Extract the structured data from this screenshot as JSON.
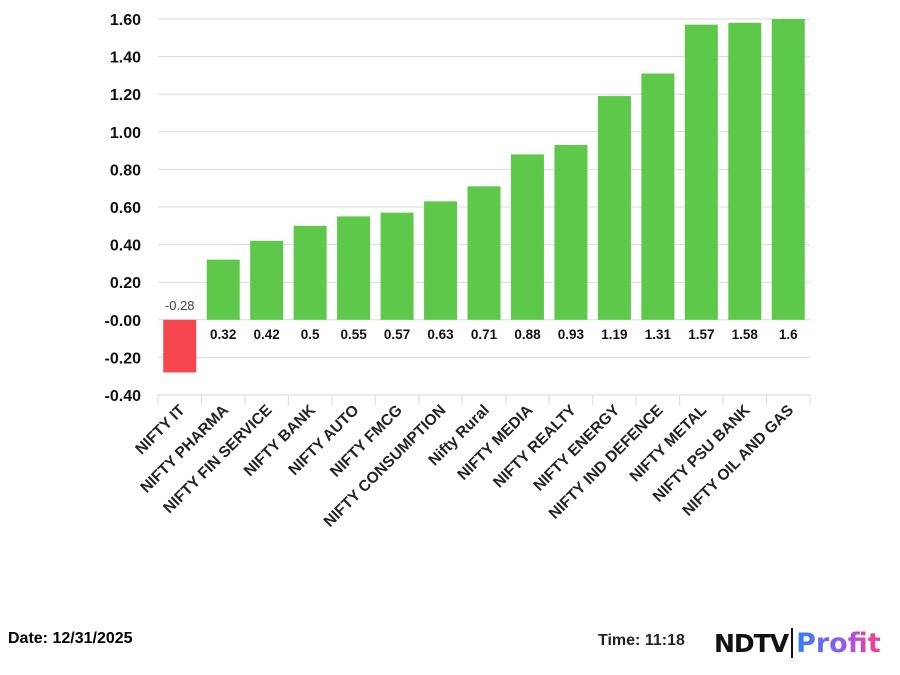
{
  "chart_data": {
    "type": "bar",
    "categories": [
      "NIFTY IT",
      "NIFTY PHARMA",
      "NIFTY FIN SERVICE",
      "NIFTY BANK",
      "NIFTY AUTO",
      "NIFTY FMCG",
      "NIFTY CONSUMPTION",
      "Nifty Rural",
      "NIFTY MEDIA",
      "NIFTY REALTY",
      "NIFTY ENERGY",
      "NIFTY IND DEFENCE",
      "NIFTY METAL",
      "NIFTY PSU BANK",
      "NIFTY OIL AND GAS"
    ],
    "values": [
      -0.28,
      0.32,
      0.42,
      0.5,
      0.55,
      0.57,
      0.63,
      0.71,
      0.88,
      0.93,
      1.19,
      1.31,
      1.57,
      1.58,
      1.6
    ],
    "data_labels": [
      "-0.28",
      "0.32",
      "0.42",
      "0.5",
      "0.55",
      "0.57",
      "0.63",
      "0.71",
      "0.88",
      "0.93",
      "1.19",
      "1.31",
      "1.57",
      "1.58",
      "1.6"
    ],
    "ylim": [
      -0.4,
      1.6
    ],
    "yticks": [
      "-0.40",
      "-0.20",
      "-0.00",
      "0.20",
      "0.40",
      "0.60",
      "0.80",
      "1.00",
      "1.20",
      "1.40",
      "1.60"
    ],
    "grid": true,
    "colors": {
      "positive": "#5ec84a",
      "negative": "#f54650"
    }
  },
  "footer": {
    "date": "Date: 12/31/2025",
    "time": "Time: 11:18",
    "logo": "NDTV Profit"
  }
}
